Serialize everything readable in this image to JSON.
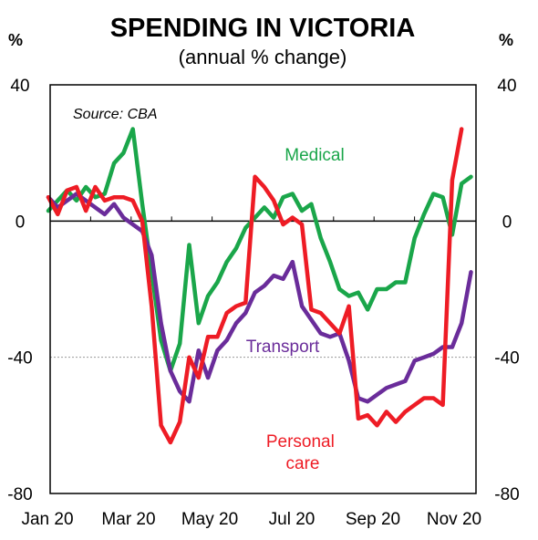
{
  "chart_data": {
    "type": "line",
    "title": "SPENDING IN VICTORIA",
    "subtitle": "(annual % change)",
    "ylabel_left": "%",
    "ylabel_right": "%",
    "source": "Source: CBA",
    "ylim": [
      -80,
      40
    ],
    "yticks": [
      "40",
      "0",
      "-40",
      "-80"
    ],
    "x_tick_labels": [
      "Jan 20",
      "Mar 20",
      "May 20",
      "Jul 20",
      "Sep 20",
      "Nov 20"
    ],
    "reference_line": -40,
    "series": [
      {
        "name": "Medical",
        "color": "#1aa64a",
        "values": [
          3,
          6,
          9,
          6,
          10,
          7,
          8,
          17,
          20,
          27,
          5,
          -15,
          -35,
          -44,
          -36,
          -7,
          -30,
          -22,
          -18,
          -12,
          -8,
          -2,
          1,
          4,
          1,
          7,
          8,
          3,
          5,
          -5,
          -12,
          -20,
          -22,
          -21,
          -26,
          -20,
          -20,
          -18,
          -18,
          -5,
          2,
          8,
          7,
          -4,
          11,
          13
        ]
      },
      {
        "name": "Transport",
        "color": "#6a2c9a",
        "values": [
          7,
          4,
          6,
          8,
          6,
          4,
          2,
          5,
          1,
          -1,
          -3,
          -10,
          -30,
          -44,
          -50,
          -53,
          -38,
          -46,
          -38,
          -35,
          -30,
          -27,
          -21,
          -19,
          -16,
          -17,
          -12,
          -25,
          -29,
          -33,
          -34,
          -33,
          -41,
          -52,
          -53,
          -51,
          -49,
          -48,
          -47,
          -41,
          -40,
          -39,
          -37,
          -37,
          -30,
          -15
        ]
      },
      {
        "name": "Personal care",
        "color": "#ee1c25",
        "values": [
          7,
          2,
          9,
          10,
          3,
          10,
          6,
          7,
          7,
          6,
          0,
          -25,
          -60,
          -65,
          -59,
          -40,
          -46,
          -34,
          -34,
          -27,
          -25,
          -24,
          13,
          10,
          6,
          -1,
          1,
          -1,
          -26,
          -27,
          -30,
          -33,
          -25,
          -58,
          -57,
          -60,
          -56,
          -59,
          -56,
          -54,
          -52,
          -52,
          -54,
          12,
          27
        ]
      }
    ]
  }
}
